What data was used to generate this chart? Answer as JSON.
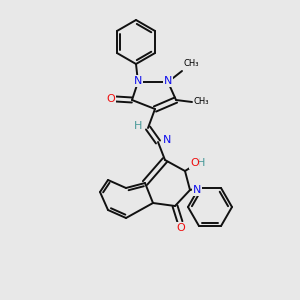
{
  "background_color": "#e8e8e8",
  "atom_colors": {
    "N": "#1010ee",
    "O": "#ee1010",
    "C": "#000000",
    "H": "#4a9a9a"
  },
  "bond_color": "#111111",
  "figsize": [
    3.0,
    3.0
  ],
  "dpi": 100
}
